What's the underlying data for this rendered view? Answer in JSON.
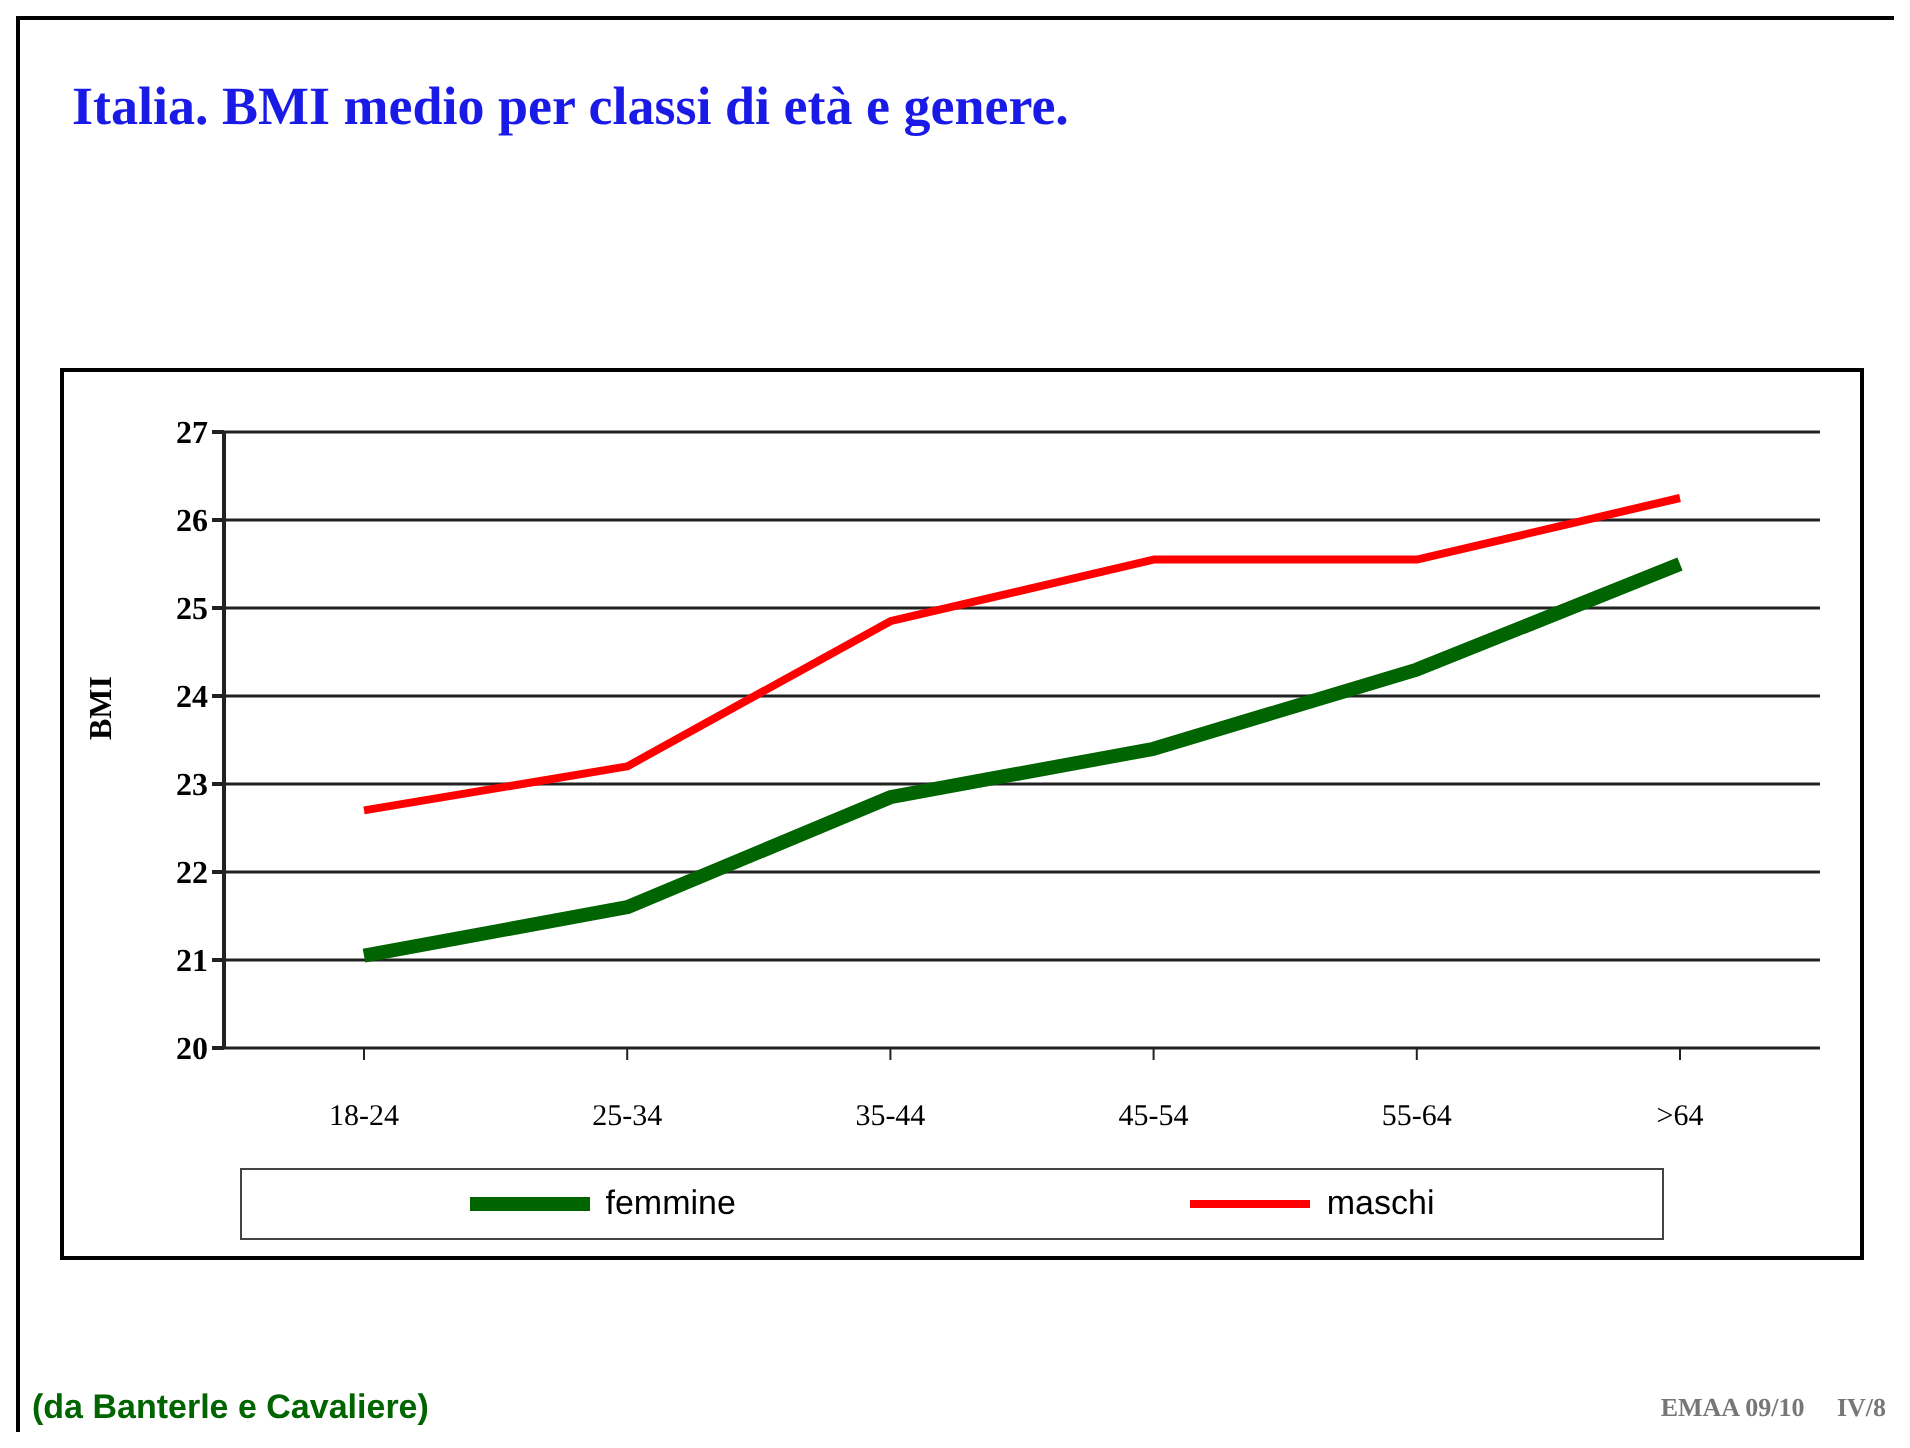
{
  "chart_data": {
    "type": "line",
    "title": "Italia. BMI medio per classi di età e genere.",
    "ylabel": "BMI",
    "categories": [
      "18-24",
      "25-34",
      "35-44",
      "45-54",
      "55-64",
      ">64"
    ],
    "series": [
      {
        "name": "femmine",
        "color": "#006400",
        "values": [
          21.05,
          21.6,
          22.85,
          23.4,
          24.3,
          25.5
        ]
      },
      {
        "name": "maschi",
        "color": "#ff0000",
        "values": [
          22.7,
          23.2,
          24.85,
          25.55,
          25.55,
          26.25
        ]
      }
    ],
    "ylim": [
      20,
      27
    ],
    "yticks": [
      20,
      21,
      22,
      23,
      24,
      25,
      26,
      27
    ],
    "grid": "y",
    "legend": "bottom",
    "marker": "none",
    "line_style": "solid",
    "annotations": [
      "(da Banterle e Cavaliere)",
      "EMAA 09/10     IV/8"
    ]
  }
}
